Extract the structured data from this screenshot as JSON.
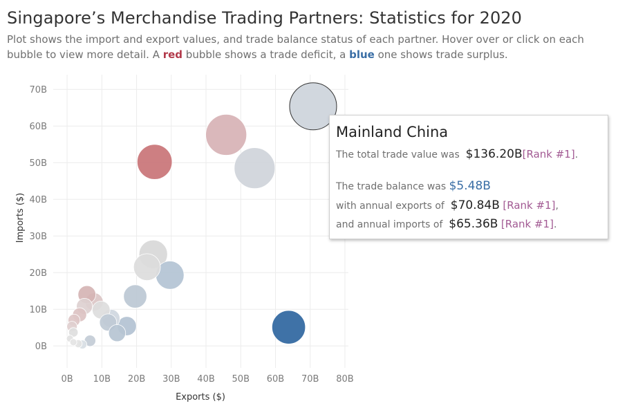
{
  "header": {
    "title": "Singapore’s Merchandise Trading Partners: Statistics for 2020",
    "subtitle_part1": "Plot shows the import and export values, and trade balance status of each partner. Hover over or click on each bubble to view more detail. A ",
    "subtitle_red": "red",
    "subtitle_part2": " bubble shows a trade deficit, a ",
    "subtitle_blue": "blue",
    "subtitle_part3": " one shows trade surplus."
  },
  "tooltip": {
    "title": "Mainland China",
    "line1_label": "The total trade value was",
    "line1_value": "$136.20B",
    "line1_rank": "[Rank #1]",
    "line1_end": ".",
    "line2_label": "The trade balance was",
    "line2_value": "$5.48B",
    "line3_label": "with annual exports of",
    "line3_value": "$70.84B",
    "line3_rank": "[Rank #1]",
    "line3_end": ",",
    "line4_label": "and annual imports of",
    "line4_value": "$65.36B",
    "line4_rank": "[Rank #1]",
    "line4_end": "."
  },
  "colors": {
    "deficit": "#c56b6f",
    "surplus": "#2f66a0",
    "neutral": "#cfd3d8",
    "grid": "#ececec"
  },
  "chart_data": {
    "type": "scatter",
    "title": "Singapore’s Merchandise Trading Partners: Statistics for 2020",
    "xlabel": "Exports ($)",
    "ylabel": "Imports ($)",
    "xlim": [
      -4,
      81
    ],
    "ylim": [
      -6,
      74
    ],
    "x_ticks": [
      0,
      10,
      20,
      30,
      40,
      50,
      60,
      70,
      80
    ],
    "x_tick_labels": [
      "0B",
      "10B",
      "20B",
      "30B",
      "40B",
      "50B",
      "60B",
      "70B",
      "80B"
    ],
    "y_ticks": [
      0,
      10,
      20,
      30,
      40,
      50,
      60,
      70
    ],
    "y_tick_labels": [
      "0B",
      "10B",
      "20B",
      "30B",
      "40B",
      "50B",
      "60B",
      "70B"
    ],
    "grid": true,
    "bubble_size": "total trade value",
    "points": [
      {
        "x": 70.84,
        "y": 65.36,
        "color": "#cdd4db",
        "outline": true
      },
      {
        "x": 45.8,
        "y": 57.6,
        "color": "#d7b2b5"
      },
      {
        "x": 54.0,
        "y": 48.5,
        "color": "#cfd4da"
      },
      {
        "x": 25.2,
        "y": 50.2,
        "color": "#c97477"
      },
      {
        "x": 63.8,
        "y": 5.1,
        "color": "#2f66a0"
      },
      {
        "x": 24.8,
        "y": 25.0,
        "color": "#d8d8d8"
      },
      {
        "x": 23.0,
        "y": 21.5,
        "color": "#dcdcdc"
      },
      {
        "x": 29.6,
        "y": 19.3,
        "color": "#b3c3d4"
      },
      {
        "x": 19.6,
        "y": 13.5,
        "color": "#bcc8d4"
      },
      {
        "x": 5.7,
        "y": 14.0,
        "color": "#d5b4b4"
      },
      {
        "x": 7.8,
        "y": 12.0,
        "color": "#dbc5c5"
      },
      {
        "x": 9.8,
        "y": 9.8,
        "color": "#dddddd"
      },
      {
        "x": 5.0,
        "y": 10.8,
        "color": "#ddd0d0"
      },
      {
        "x": 12.6,
        "y": 7.5,
        "color": "#cfd7df"
      },
      {
        "x": 11.8,
        "y": 6.4,
        "color": "#bfcad5"
      },
      {
        "x": 17.2,
        "y": 5.4,
        "color": "#b3c2d2"
      },
      {
        "x": 14.4,
        "y": 3.5,
        "color": "#b6c4d3"
      },
      {
        "x": 3.6,
        "y": 8.5,
        "color": "#dcc2c2"
      },
      {
        "x": 2.0,
        "y": 7.0,
        "color": "#ddc5c5"
      },
      {
        "x": 1.4,
        "y": 5.3,
        "color": "#e0cfcf"
      },
      {
        "x": 1.8,
        "y": 3.7,
        "color": "#dedede"
      },
      {
        "x": 6.6,
        "y": 1.4,
        "color": "#c3ccd6"
      },
      {
        "x": 0.8,
        "y": 2.0,
        "color": "#e2e2e2"
      },
      {
        "x": 1.8,
        "y": 1.0,
        "color": "#e4e4e4"
      },
      {
        "x": 3.2,
        "y": 0.6,
        "color": "#e3e3e3"
      },
      {
        "x": 4.4,
        "y": 0.4,
        "color": "#d8dee4"
      }
    ]
  }
}
